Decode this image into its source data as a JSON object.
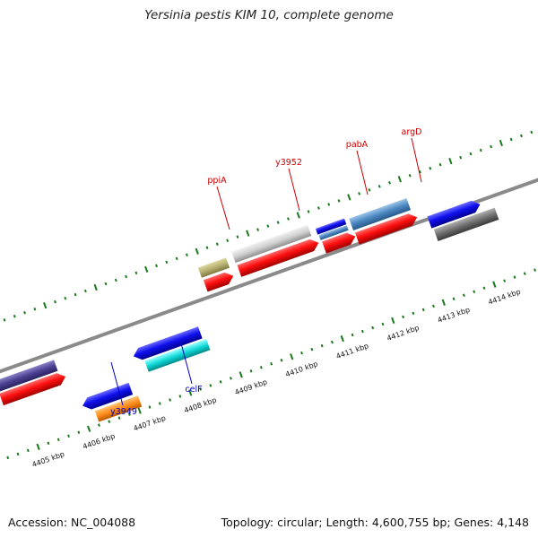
{
  "header": {
    "title": "Yersinia pestis KIM 10, complete genome"
  },
  "footer": {
    "accession": "Accession: NC_004088",
    "topology": "Topology: circular; Length: 4,600,755 bp; Genes: 4,148"
  },
  "scale": {
    "labels": [
      "4405 kbp",
      "4406 kbp",
      "4407 kbp",
      "4408 kbp",
      "4409 kbp",
      "4410 kbp",
      "4411 kbp",
      "4412 kbp",
      "4413 kbp",
      "4414 kbp"
    ]
  },
  "genes": {
    "forward_labels": [
      {
        "name": "ppiA",
        "color": "#cc0000"
      },
      {
        "name": "y3952",
        "color": "#cc0000"
      },
      {
        "name": "pabA",
        "color": "#cc0000"
      },
      {
        "name": "argD",
        "color": "#cc0000"
      }
    ],
    "reverse_labels": [
      {
        "name": "y3949",
        "color": "#0000cc"
      },
      {
        "name": "celF",
        "color": "#0000cc"
      }
    ]
  },
  "colors": {
    "backbone": "#888888",
    "tick": "#1a7a1a",
    "cds": "#ee1111",
    "forward_label": "#cc0000",
    "reverse_label": "#0000cc"
  }
}
